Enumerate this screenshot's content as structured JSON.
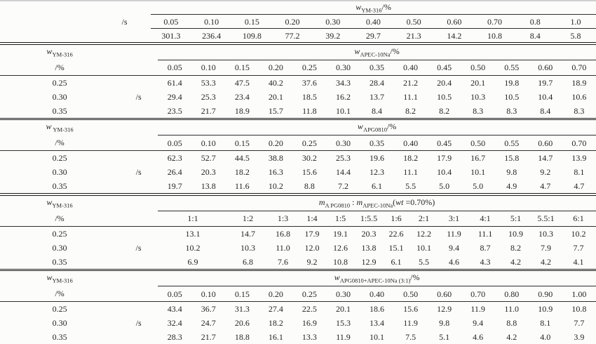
{
  "meta": {
    "ink_color": "#242424",
    "thin_rule_color": "#2e2e2e",
    "section_rule_color": "#1a1a1a",
    "top_rule_color": "#d0d0d0",
    "background": "#fcfcfb"
  },
  "table1": {
    "span_header": [
      {
        "t": "w",
        "s": "var"
      },
      {
        "t": "YM-316",
        "s": "sub"
      },
      {
        "t": "/%",
        "s": "plain"
      }
    ],
    "unit_label": "/s",
    "columns": [
      "0.05",
      "0.10",
      "0.15",
      "0.20",
      "0.30",
      "0.40",
      "0.50",
      "0.60",
      "0.70",
      "0.8",
      "1.0"
    ],
    "values": [
      "301.3",
      "236.4",
      "109.8",
      "77.2",
      "39.2",
      "29.7",
      "21.3",
      "14.2",
      "10.8",
      "8.4",
      "5.8"
    ]
  },
  "sections": [
    {
      "left_header": [
        {
          "t": "w",
          "s": "var"
        },
        {
          "t": "YM-316",
          "s": "sub"
        }
      ],
      "left_unit": "/%",
      "unit_label": "/s",
      "span_header": [
        {
          "t": "w",
          "s": "var"
        },
        {
          "t": "APEC-10Na",
          "s": "sub"
        },
        {
          "t": "/%",
          "s": "plain"
        }
      ],
      "columns": [
        "0.05",
        "0.10",
        "0.15",
        "0.20",
        "0.25",
        "0.30",
        "0.35",
        "0.40",
        "0.45",
        "0.50",
        "0.55",
        "0.60",
        "0.70"
      ],
      "rows": [
        {
          "label": "0.25",
          "values": [
            "61.4",
            "53.3",
            "47.5",
            "40.2",
            "37.6",
            "34.3",
            "28.4",
            "21.2",
            "20.4",
            "20.1",
            "19.8",
            "19.7",
            "18.9"
          ]
        },
        {
          "label": "0.30",
          "values": [
            "29.4",
            "25.3",
            "23.4",
            "20.1",
            "18.5",
            "16.2",
            "13.7",
            "11.1",
            "10.5",
            "10.3",
            "10.5",
            "10.4",
            "10.6"
          ]
        },
        {
          "label": "0.35",
          "values": [
            "23.5",
            "21.7",
            "18.9",
            "15.7",
            "11.8",
            "10.1",
            "8.4",
            "8.2",
            "8.2",
            "8.3",
            "8.3",
            "8.4",
            "8.3"
          ]
        }
      ]
    },
    {
      "left_header": [
        {
          "t": "w",
          "s": "var"
        },
        {
          "t": " YM-316",
          "s": "sub"
        }
      ],
      "left_unit": "/%",
      "unit_label": "/s",
      "span_header": [
        {
          "t": "w",
          "s": "var"
        },
        {
          "t": "APG0810",
          "s": "sub"
        },
        {
          "t": "/%",
          "s": "plain"
        }
      ],
      "columns": [
        "0.05",
        "0.10",
        "0.15",
        "0.20",
        "0.25",
        "0.30",
        "0.35",
        "0.40",
        "0.45",
        "0.50",
        "0.55",
        "0.60",
        "0.70"
      ],
      "rows": [
        {
          "label": "0.25",
          "values": [
            "62.3",
            "52.7",
            "44.5",
            "38.8",
            "30.2",
            "25.3",
            "19.6",
            "18.2",
            "17.9",
            "16.7",
            "15.8",
            "14.7",
            "13.9"
          ]
        },
        {
          "label": "0.30",
          "values": [
            "26.4",
            "20.3",
            "18.2",
            "16.3",
            "15.6",
            "14.4",
            "12.3",
            "11.1",
            "10.4",
            "10.1",
            "9.8",
            "9.2",
            "8.1"
          ]
        },
        {
          "label": "0.35",
          "values": [
            "19.7",
            "13.8",
            "11.6",
            "10.2",
            "8.8",
            "7.2",
            "6.1",
            "5.5",
            "5.0",
            "5.0",
            "4.9",
            "4.7",
            "4.7"
          ]
        }
      ]
    },
    {
      "left_header": [
        {
          "t": "w",
          "s": "var"
        },
        {
          "t": "YM-316",
          "s": "sub"
        }
      ],
      "left_unit": "/%",
      "unit_label": "/s",
      "span_header": [
        {
          "t": "m",
          "s": "var"
        },
        {
          "t": "A PG0810",
          "s": "sub"
        },
        {
          "t": " : ",
          "s": "plain"
        },
        {
          "t": "m",
          "s": "var"
        },
        {
          "t": "APEC-10Na",
          "s": "sub"
        },
        {
          "t": "(",
          "s": "plain"
        },
        {
          "t": "wt",
          "s": "var"
        },
        {
          "t": " =0.70%)",
          "s": "plain"
        }
      ],
      "columns": [
        "1:1",
        "1:2",
        "1:3",
        "1:4",
        "1:5",
        "1:5.5",
        "1:6",
        "2:1",
        "3:1",
        "4:1",
        "5:1",
        "5.5:1",
        "6:1"
      ],
      "rows": [
        {
          "label": "0.25",
          "values": [
            "13.1",
            "14.7",
            "16.8",
            "17.9",
            "19.1",
            "20.3",
            "22.6",
            "12.2",
            "11.9",
            "11.1",
            "10.9",
            "10.3",
            "10.2"
          ]
        },
        {
          "label": "0.30",
          "values": [
            "10.2",
            "10.3",
            "11.0",
            "12.0",
            "12.6",
            "13.8",
            "15.1",
            "10.1",
            "9.4",
            "8.7",
            "8.2",
            "7.9",
            "7.7"
          ]
        },
        {
          "label": "0.35",
          "values": [
            "6.9",
            "6.8",
            "7.6",
            "9.2",
            "10.8",
            "12.9",
            "6.1",
            "5.5",
            "4.6",
            "4.3",
            "4.2",
            "4.2",
            "4.1"
          ]
        }
      ]
    },
    {
      "left_header": [
        {
          "t": "w",
          "s": "var"
        },
        {
          "t": "YM-316",
          "s": "sub"
        }
      ],
      "left_unit": "/%",
      "unit_label": "/s",
      "span_header": [
        {
          "t": "w",
          "s": "var"
        },
        {
          "t": "APG0810+APEC-10Na (3:1)",
          "s": "sub"
        },
        {
          "t": "/%",
          "s": "plain"
        }
      ],
      "columns": [
        "0.05",
        "0.10",
        "0.15",
        "0.20",
        "0.25",
        "0.30",
        "0.40",
        "0.50",
        "0.60",
        "0.70",
        "0.80",
        "0.90",
        "1.00"
      ],
      "rows": [
        {
          "label": "0.25",
          "values": [
            "43.4",
            "36.7",
            "31.3",
            "27.4",
            "22.5",
            "20.1",
            "18.6",
            "15.6",
            "12.9",
            "11.9",
            "11.0",
            "10.9",
            "10.8"
          ]
        },
        {
          "label": "0.30",
          "values": [
            "32.4",
            "24.7",
            "20.6",
            "18.2",
            "16.9",
            "15.3",
            "13.4",
            "11.9",
            "9.8",
            "9.4",
            "8.8",
            "8.1",
            "7.7"
          ]
        },
        {
          "label": "0.35",
          "values": [
            "28.3",
            "21.7",
            "18.8",
            "16.1",
            "13.3",
            "11.9",
            "10.1",
            "7.5",
            "5.1",
            "4.6",
            "4.2",
            "4.0",
            "3.9"
          ]
        }
      ]
    }
  ]
}
